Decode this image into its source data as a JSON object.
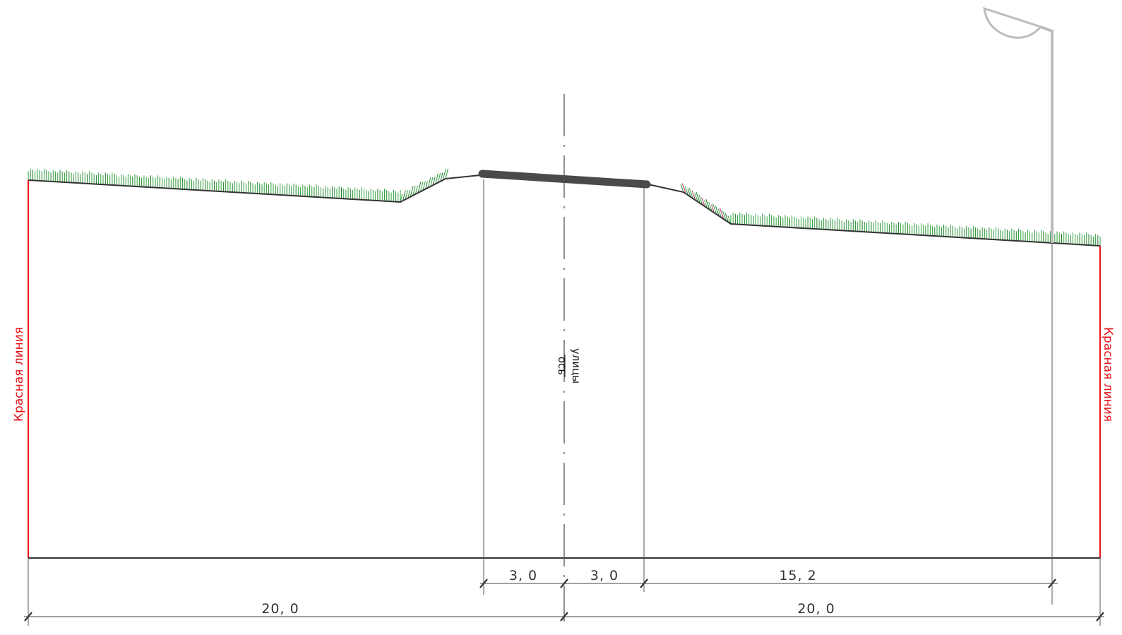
{
  "colors": {
    "red_line": "#e8141b",
    "grass": "#2e9e3a",
    "grass_tip": "#c0306a",
    "road": "#4a4a4a",
    "ground": "#333333",
    "lamp": "#bdbdbd",
    "dim": "#333333"
  },
  "labels": {
    "red_line_left": "Красная линия",
    "red_line_right": "Красная линия",
    "axis_top": "ось",
    "axis_bottom": "улицы"
  },
  "dimensions": {
    "d1": "3, 0",
    "d2": "3, 0",
    "d3": "15, 2",
    "d4": "20, 0",
    "d5": "20, 0"
  },
  "icons": {
    "lamp": "street-lamp-icon",
    "grass": "grass-hatch-icon"
  }
}
